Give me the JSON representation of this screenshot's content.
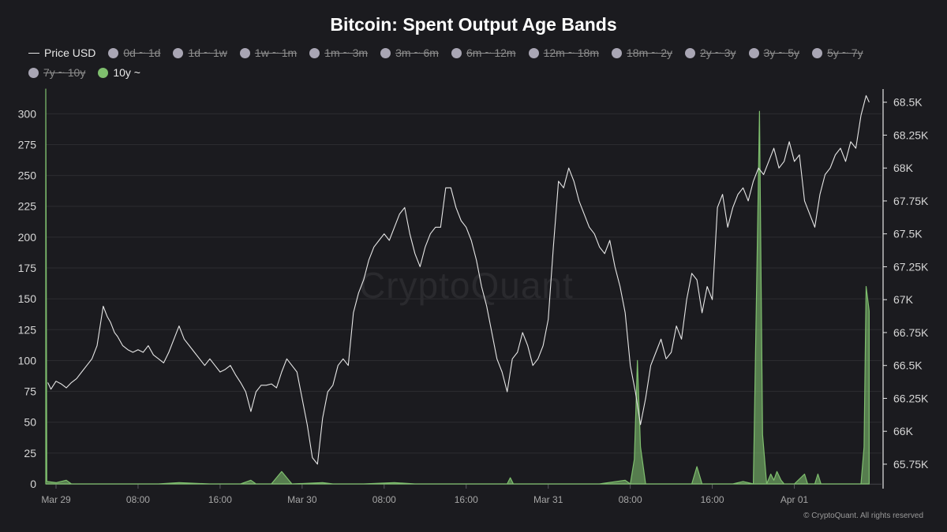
{
  "title": "Bitcoin: Spent Output Age Bands",
  "watermark": "CryptoQuant",
  "footer": "© CryptoQuant. All rights reserved",
  "colors": {
    "background": "#1b1b1f",
    "grid": "#2c2c30",
    "price_line": "#e6e6e6",
    "band_10y": "#7fbf6e",
    "disabled_band": "#a9a6b4",
    "axis_text": "#d6d6d6",
    "x_tick_text": "#a6a6a6"
  },
  "legend": [
    {
      "label": "Price USD",
      "kind": "line",
      "enabled": true
    },
    {
      "label": "0d ~ 1d",
      "kind": "dot",
      "enabled": false
    },
    {
      "label": "1d ~ 1w",
      "kind": "dot",
      "enabled": false
    },
    {
      "label": "1w ~ 1m",
      "kind": "dot",
      "enabled": false
    },
    {
      "label": "1m ~ 3m",
      "kind": "dot",
      "enabled": false
    },
    {
      "label": "3m ~ 6m",
      "kind": "dot",
      "enabled": false
    },
    {
      "label": "6m ~ 12m",
      "kind": "dot",
      "enabled": false
    },
    {
      "label": "12m ~ 18m",
      "kind": "dot",
      "enabled": false
    },
    {
      "label": "18m ~ 2y",
      "kind": "dot",
      "enabled": false
    },
    {
      "label": "2y ~ 3y",
      "kind": "dot",
      "enabled": false
    },
    {
      "label": "3y ~ 5y",
      "kind": "dot",
      "enabled": false
    },
    {
      "label": "5y ~ 7y",
      "kind": "dot",
      "enabled": false
    },
    {
      "label": "7y ~ 10y",
      "kind": "dot",
      "enabled": false
    },
    {
      "label": "10y ~",
      "kind": "dot",
      "enabled": true
    }
  ],
  "chart_data": {
    "type": "line",
    "title": "Bitcoin: Spent Output Age Bands",
    "x_unit": "hours since Mar 29 00:00",
    "x_range": [
      -1,
      80.5
    ],
    "x_ticks": [
      {
        "x": 0,
        "label": "Mar 29"
      },
      {
        "x": 8,
        "label": "08:00"
      },
      {
        "x": 16,
        "label": "16:00"
      },
      {
        "x": 24,
        "label": "Mar 30"
      },
      {
        "x": 32,
        "label": "08:00"
      },
      {
        "x": 40,
        "label": "16:00"
      },
      {
        "x": 48,
        "label": "Mar 31"
      },
      {
        "x": 56,
        "label": "08:00"
      },
      {
        "x": 64,
        "label": "16:00"
      },
      {
        "x": 72,
        "label": "Apr 01"
      }
    ],
    "y_left": {
      "range": [
        0,
        320
      ],
      "ticks": [
        0,
        25,
        50,
        75,
        100,
        125,
        150,
        175,
        200,
        225,
        250,
        275,
        300
      ]
    },
    "y_right": {
      "range": [
        65.6,
        68.6
      ],
      "ticks": [
        {
          "value": 65.75,
          "label": "65.75K"
        },
        {
          "value": 66,
          "label": "66K"
        },
        {
          "value": 66.25,
          "label": "66.25K"
        },
        {
          "value": 66.5,
          "label": "66.5K"
        },
        {
          "value": 66.75,
          "label": "66.75K"
        },
        {
          "value": 67,
          "label": "67K"
        },
        {
          "value": 67.25,
          "label": "67.25K"
        },
        {
          "value": 67.5,
          "label": "67.5K"
        },
        {
          "value": 67.75,
          "label": "67.75K"
        },
        {
          "value": 68,
          "label": "68K"
        },
        {
          "value": 68.25,
          "label": "68.25K"
        },
        {
          "value": 68.5,
          "label": "68.5K"
        }
      ]
    },
    "grid": true,
    "series": [
      {
        "name": "Price USD",
        "axis": "right",
        "unit": "K USD",
        "points": [
          [
            -0.8,
            66.37
          ],
          [
            -0.5,
            66.32
          ],
          [
            0,
            66.38
          ],
          [
            0.5,
            66.36
          ],
          [
            1,
            66.33
          ],
          [
            1.5,
            66.37
          ],
          [
            2,
            66.4
          ],
          [
            2.5,
            66.45
          ],
          [
            3,
            66.5
          ],
          [
            3.5,
            66.55
          ],
          [
            4,
            66.65
          ],
          [
            4.3,
            66.8
          ],
          [
            4.6,
            66.95
          ],
          [
            5,
            66.87
          ],
          [
            5.3,
            66.83
          ],
          [
            5.7,
            66.75
          ],
          [
            6,
            66.72
          ],
          [
            6.5,
            66.65
          ],
          [
            7,
            66.62
          ],
          [
            7.5,
            66.6
          ],
          [
            8,
            66.62
          ],
          [
            8.5,
            66.6
          ],
          [
            9,
            66.65
          ],
          [
            9.5,
            66.58
          ],
          [
            10,
            66.55
          ],
          [
            10.5,
            66.52
          ],
          [
            11,
            66.6
          ],
          [
            11.5,
            66.7
          ],
          [
            12,
            66.8
          ],
          [
            12.5,
            66.7
          ],
          [
            13,
            66.65
          ],
          [
            13.5,
            66.6
          ],
          [
            14,
            66.55
          ],
          [
            14.5,
            66.5
          ],
          [
            15,
            66.55
          ],
          [
            15.5,
            66.5
          ],
          [
            16,
            66.45
          ],
          [
            16.5,
            66.47
          ],
          [
            17,
            66.5
          ],
          [
            17.5,
            66.43
          ],
          [
            18,
            66.37
          ],
          [
            18.5,
            66.3
          ],
          [
            19,
            66.15
          ],
          [
            19.5,
            66.3
          ],
          [
            20,
            66.35
          ],
          [
            20.5,
            66.35
          ],
          [
            21,
            66.36
          ],
          [
            21.5,
            66.33
          ],
          [
            22,
            66.45
          ],
          [
            22.5,
            66.55
          ],
          [
            23,
            66.5
          ],
          [
            23.5,
            66.45
          ],
          [
            24,
            66.25
          ],
          [
            24.5,
            66.05
          ],
          [
            25,
            65.8
          ],
          [
            25.5,
            65.75
          ],
          [
            26,
            66.1
          ],
          [
            26.5,
            66.3
          ],
          [
            27,
            66.35
          ],
          [
            27.5,
            66.5
          ],
          [
            28,
            66.55
          ],
          [
            28.5,
            66.5
          ],
          [
            29,
            66.9
          ],
          [
            29.5,
            67.05
          ],
          [
            30,
            67.15
          ],
          [
            30.5,
            67.3
          ],
          [
            31,
            67.4
          ],
          [
            31.5,
            67.45
          ],
          [
            32,
            67.5
          ],
          [
            32.5,
            67.45
          ],
          [
            33,
            67.55
          ],
          [
            33.5,
            67.65
          ],
          [
            34,
            67.7
          ],
          [
            34.5,
            67.5
          ],
          [
            35,
            67.35
          ],
          [
            35.5,
            67.25
          ],
          [
            36,
            67.4
          ],
          [
            36.5,
            67.5
          ],
          [
            37,
            67.55
          ],
          [
            37.5,
            67.55
          ],
          [
            38,
            67.85
          ],
          [
            38.5,
            67.85
          ],
          [
            39,
            67.7
          ],
          [
            39.5,
            67.6
          ],
          [
            40,
            67.55
          ],
          [
            40.5,
            67.45
          ],
          [
            41,
            67.3
          ],
          [
            41.5,
            67.1
          ],
          [
            42,
            66.95
          ],
          [
            42.5,
            66.75
          ],
          [
            43,
            66.55
          ],
          [
            43.5,
            66.45
          ],
          [
            44,
            66.3
          ],
          [
            44.5,
            66.55
          ],
          [
            45,
            66.6
          ],
          [
            45.5,
            66.75
          ],
          [
            46,
            66.65
          ],
          [
            46.5,
            66.5
          ],
          [
            47,
            66.55
          ],
          [
            47.5,
            66.65
          ],
          [
            48,
            66.85
          ],
          [
            48.5,
            67.4
          ],
          [
            49,
            67.9
          ],
          [
            49.5,
            67.85
          ],
          [
            50,
            68.0
          ],
          [
            50.5,
            67.9
          ],
          [
            51,
            67.75
          ],
          [
            51.5,
            67.65
          ],
          [
            52,
            67.55
          ],
          [
            52.5,
            67.5
          ],
          [
            53,
            67.4
          ],
          [
            53.5,
            67.35
          ],
          [
            54,
            67.45
          ],
          [
            54.5,
            67.25
          ],
          [
            55,
            67.1
          ],
          [
            55.5,
            66.9
          ],
          [
            56,
            66.5
          ],
          [
            56.5,
            66.3
          ],
          [
            57,
            66.05
          ],
          [
            57.5,
            66.25
          ],
          [
            58,
            66.5
          ],
          [
            58.5,
            66.6
          ],
          [
            59,
            66.7
          ],
          [
            59.5,
            66.55
          ],
          [
            60,
            66.6
          ],
          [
            60.5,
            66.8
          ],
          [
            61,
            66.7
          ],
          [
            61.5,
            67.0
          ],
          [
            62,
            67.2
          ],
          [
            62.5,
            67.15
          ],
          [
            63,
            66.9
          ],
          [
            63.5,
            67.1
          ],
          [
            64,
            67.0
          ],
          [
            64.5,
            67.7
          ],
          [
            65,
            67.8
          ],
          [
            65.5,
            67.55
          ],
          [
            66,
            67.7
          ],
          [
            66.5,
            67.8
          ],
          [
            67,
            67.85
          ],
          [
            67.5,
            67.75
          ],
          [
            68,
            67.9
          ],
          [
            68.5,
            68.0
          ],
          [
            69,
            67.95
          ],
          [
            69.5,
            68.05
          ],
          [
            70,
            68.15
          ],
          [
            70.5,
            68.0
          ],
          [
            71,
            68.05
          ],
          [
            71.5,
            68.2
          ],
          [
            72,
            68.05
          ],
          [
            72.5,
            68.1
          ],
          [
            73,
            67.75
          ],
          [
            73.5,
            67.65
          ],
          [
            74,
            67.55
          ],
          [
            74.5,
            67.8
          ],
          [
            75,
            67.95
          ],
          [
            75.5,
            68.0
          ],
          [
            76,
            68.1
          ],
          [
            76.5,
            68.15
          ],
          [
            77,
            68.05
          ],
          [
            77.5,
            68.2
          ],
          [
            78,
            68.15
          ],
          [
            78.5,
            68.4
          ],
          [
            79,
            68.55
          ],
          [
            79.3,
            68.5
          ]
        ]
      },
      {
        "name": "10y ~",
        "axis": "left",
        "unit": "BTC",
        "points": [
          [
            -1,
            320
          ],
          [
            -0.9,
            2
          ],
          [
            0,
            1
          ],
          [
            1,
            3
          ],
          [
            1.5,
            0
          ],
          [
            3,
            0
          ],
          [
            8,
            0
          ],
          [
            10,
            0
          ],
          [
            12,
            1
          ],
          [
            15,
            0
          ],
          [
            18,
            0
          ],
          [
            19,
            3
          ],
          [
            19.5,
            0
          ],
          [
            21,
            0
          ],
          [
            22,
            10
          ],
          [
            23,
            0
          ],
          [
            26,
            1
          ],
          [
            27,
            0
          ],
          [
            30,
            0
          ],
          [
            33,
            1
          ],
          [
            35,
            0
          ],
          [
            40,
            0
          ],
          [
            44,
            0
          ],
          [
            44.3,
            5
          ],
          [
            44.6,
            0
          ],
          [
            49,
            0
          ],
          [
            53,
            0
          ],
          [
            55.5,
            3
          ],
          [
            56,
            0
          ],
          [
            56.4,
            20
          ],
          [
            56.7,
            100
          ],
          [
            57,
            30
          ],
          [
            57.5,
            0
          ],
          [
            62,
            0
          ],
          [
            62.5,
            14
          ],
          [
            63,
            0
          ],
          [
            66,
            0
          ],
          [
            67,
            2
          ],
          [
            68,
            0
          ],
          [
            68.4,
            200
          ],
          [
            68.6,
            302
          ],
          [
            68.9,
            40
          ],
          [
            69.3,
            0
          ],
          [
            69.7,
            8
          ],
          [
            70,
            3
          ],
          [
            70.3,
            10
          ],
          [
            70.7,
            3
          ],
          [
            71,
            0
          ],
          [
            72,
            0
          ],
          [
            73,
            8
          ],
          [
            73.3,
            0
          ],
          [
            74,
            0
          ],
          [
            74.3,
            8
          ],
          [
            74.6,
            0
          ],
          [
            78.5,
            0
          ],
          [
            78.8,
            30
          ],
          [
            79,
            160
          ],
          [
            79.3,
            140
          ]
        ]
      }
    ]
  }
}
